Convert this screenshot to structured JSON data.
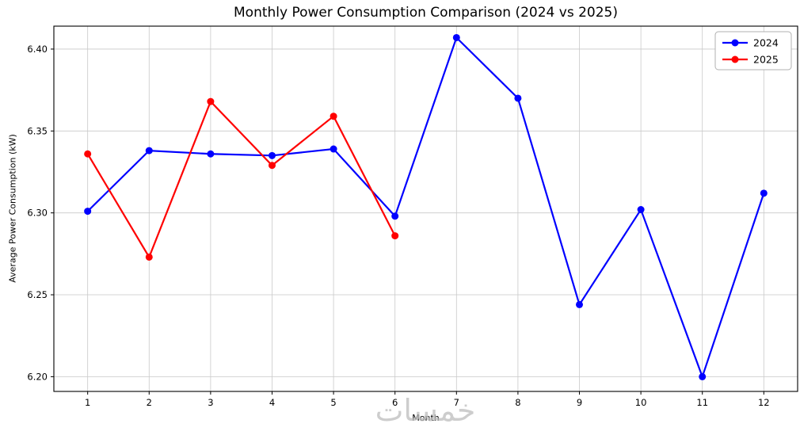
{
  "page": {
    "background": "#ffffff"
  },
  "chart_data": {
    "type": "line",
    "title": "Monthly Power Consumption Comparison (2024 vs 2025)",
    "xlabel": "Month",
    "ylabel": "Average Power Consumption (kW)",
    "x": [
      1,
      2,
      3,
      4,
      5,
      6,
      7,
      8,
      9,
      10,
      11,
      12
    ],
    "series": [
      {
        "name": "2024",
        "color": "#0000ff",
        "values": [
          6.301,
          6.338,
          6.336,
          6.335,
          6.339,
          6.298,
          6.407,
          6.37,
          6.244,
          6.302,
          6.2,
          6.312
        ]
      },
      {
        "name": "2025",
        "color": "#ff0000",
        "values": [
          6.336,
          6.273,
          6.368,
          6.329,
          6.359,
          6.286
        ]
      }
    ],
    "xtick_labels": [
      "1",
      "2",
      "3",
      "4",
      "5",
      "6",
      "7",
      "8",
      "9",
      "10",
      "11",
      "12"
    ],
    "ytick_values": [
      6.2,
      6.25,
      6.3,
      6.35,
      6.4
    ],
    "ytick_labels": [
      "6.20",
      "6.25",
      "6.30",
      "6.35",
      "6.40"
    ],
    "xlim": [
      0.45,
      12.55
    ],
    "ylim": [
      6.191,
      6.414
    ],
    "grid": true,
    "grid_color": "#c9c9c9",
    "axes_color": "#000000",
    "legend_position": "top-right",
    "legend_entries": [
      "2024",
      "2025"
    ]
  },
  "watermark": {
    "text": "خمسات"
  }
}
